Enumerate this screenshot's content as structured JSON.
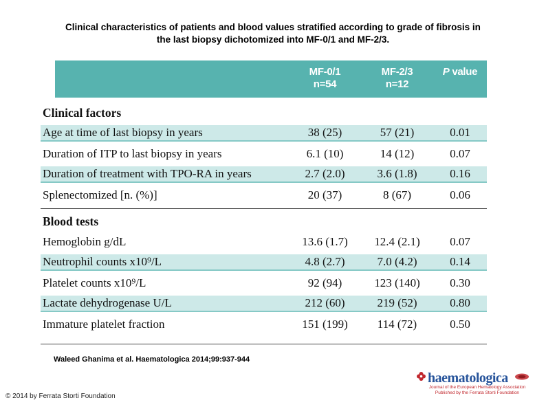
{
  "title": {
    "line1": "Clinical characteristics of patients and blood values stratified according to grade of fibrosis in",
    "line2": "the last biopsy dichotomized into MF-0/1 and MF-2/3."
  },
  "table": {
    "columns": [
      {
        "label": "MF-0/1",
        "sub": "n=54"
      },
      {
        "label": "MF-2/3",
        "sub": "n=12"
      },
      {
        "label": "P value",
        "sub": ""
      }
    ],
    "rows": [
      {
        "type": "section",
        "label": "Clinical factors"
      },
      {
        "type": "data",
        "shaded": true,
        "label": "Age at time of last biopsy in years",
        "v1": "38 (25)",
        "v2": "57 (21)",
        "p": "0.01"
      },
      {
        "type": "data",
        "shaded": false,
        "label": "Duration of ITP to last biopsy in years",
        "v1": "6.1 (10)",
        "v2": "14 (12)",
        "p": "0.07"
      },
      {
        "type": "data",
        "shaded": true,
        "label": "Duration of treatment with TPO-RA in years",
        "v1": "2.7 (2.0)",
        "v2": "3.6 (1.8)",
        "p": "0.16"
      },
      {
        "type": "data",
        "shaded": false,
        "label": "Splenectomized [n. (%)]",
        "v1": "20 (37)",
        "v2": "8 (67)",
        "p": "0.06"
      },
      {
        "type": "section",
        "label": "Blood tests"
      },
      {
        "type": "data",
        "shaded": false,
        "label": "Hemoglobin g/dL",
        "v1": "13.6 (1.7)",
        "v2": "12.4 (2.1)",
        "p": "0.07"
      },
      {
        "type": "data",
        "shaded": true,
        "label": "Neutrophil counts x10⁹/L",
        "v1": "4.8 (2.7)",
        "v2": "7.0 (4.2)",
        "p": "0.14"
      },
      {
        "type": "data",
        "shaded": false,
        "label": "Platelet counts x10⁹/L",
        "v1": "92 (94)",
        "v2": "123 (140)",
        "p": "0.30"
      },
      {
        "type": "data",
        "shaded": true,
        "label": "Lactate dehydrogenase U/L",
        "v1": "212 (60)",
        "v2": "219 (52)",
        "p": "0.80"
      },
      {
        "type": "data",
        "shaded": false,
        "label": "Immature platelet fraction",
        "v1": "151 (199)",
        "v2": "114 (72)",
        "p": "0.50"
      }
    ]
  },
  "citation": "Waleed Ghanima et al. Haematologica 2014;99:937-944",
  "copyright": "© 2014 by Ferrata Storti Foundation",
  "logo": {
    "wordmark": "haematologica",
    "tagline1": "Journal of the European Hematology Association",
    "tagline2": "Published by the Ferrata Storti Foundation",
    "flower_icon": "haematologica-flower-icon",
    "eha_icon": "eha-emblem-icon"
  },
  "colors": {
    "header_bg": "#57b3af",
    "stripe_bg": "#cde9e8",
    "stripe_border": "#86c9c6",
    "logo_blue": "#27549b",
    "logo_red": "#c1272d"
  }
}
